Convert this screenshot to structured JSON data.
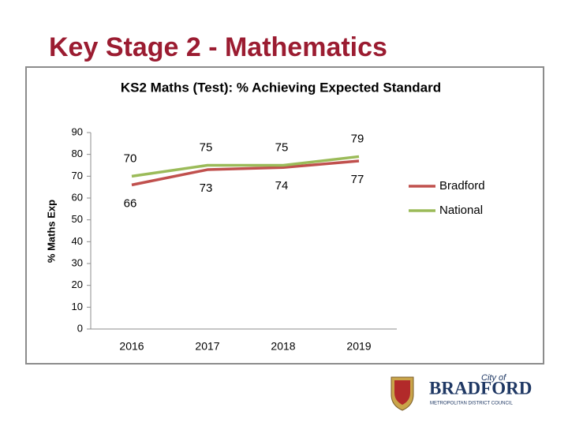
{
  "slide_title": "Key Stage 2 - Mathematics",
  "logo": {
    "line1": "City of",
    "line2": "BRADFORD",
    "line3": "METROPOLITAN DISTRICT COUNCIL"
  },
  "chart_data": {
    "type": "line",
    "title": "KS2 Maths (Test): % Achieving Expected Standard",
    "y_label": "% Maths Exp",
    "categories": [
      "2016",
      "2017",
      "2018",
      "2019"
    ],
    "series": [
      {
        "name": "Bradford",
        "color": "#c0504d",
        "values": [
          66,
          73,
          74,
          77
        ]
      },
      {
        "name": "National",
        "color": "#9bbb59",
        "values": [
          70,
          75,
          75,
          79
        ]
      }
    ],
    "ylim": [
      0,
      90
    ],
    "yticks": [
      0,
      10,
      20,
      30,
      40,
      50,
      60,
      70,
      80,
      90
    ],
    "grid": false,
    "legend": "right",
    "data_labels": true
  }
}
